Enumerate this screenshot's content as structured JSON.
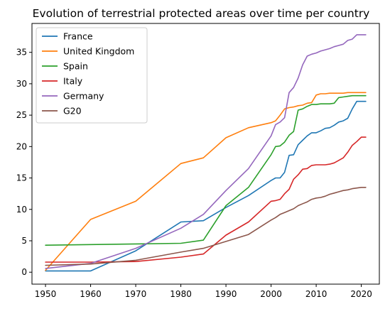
{
  "chart_data": {
    "type": "line",
    "title": "Evolution of terrestrial protected areas over time per country",
    "xlabel": "",
    "ylabel": "",
    "xlim": [
      1947,
      2024
    ],
    "ylim": [
      -1.9,
      39.6
    ],
    "xticks": [
      1950,
      1960,
      1970,
      1980,
      1990,
      2000,
      2010,
      2020
    ],
    "yticks": [
      0,
      5,
      10,
      15,
      20,
      25,
      30,
      35
    ],
    "xtick_labels": [
      "1950",
      "1960",
      "1970",
      "1980",
      "1990",
      "2000",
      "2010",
      "2020"
    ],
    "ytick_labels": [
      "0",
      "5",
      "10",
      "15",
      "20",
      "25",
      "30",
      "35"
    ],
    "grid": false,
    "legend_position": "top-left",
    "series": [
      {
        "name": "France",
        "color": "#1f77b4",
        "x": [
          1950,
          1960,
          1970,
          1980,
          1985,
          1990,
          1995,
          2000,
          2001,
          2002,
          2003,
          2004,
          2005,
          2006,
          2007,
          2008,
          2009,
          2010,
          2011,
          2012,
          2013,
          2014,
          2015,
          2016,
          2017,
          2018,
          2019,
          2020,
          2021
        ],
        "y": [
          0.2,
          0.2,
          3.4,
          8.0,
          8.2,
          10.3,
          12.2,
          14.6,
          15.0,
          15.0,
          15.9,
          18.6,
          18.7,
          20.3,
          21.0,
          21.7,
          22.2,
          22.2,
          22.5,
          22.9,
          23.0,
          23.4,
          23.9,
          24.1,
          24.5,
          26.0,
          27.2,
          27.2,
          27.2
        ]
      },
      {
        "name": "United Kingdom",
        "color": "#ff7f0e",
        "x": [
          1950,
          1960,
          1970,
          1980,
          1985,
          1990,
          1995,
          2000,
          2001,
          2002,
          2003,
          2004,
          2005,
          2006,
          2007,
          2008,
          2009,
          2010,
          2011,
          2012,
          2013,
          2014,
          2015,
          2016,
          2017,
          2018,
          2019,
          2020,
          2021
        ],
        "y": [
          0.3,
          8.4,
          11.3,
          17.3,
          18.2,
          21.4,
          23.0,
          23.8,
          24.1,
          25.0,
          26.0,
          26.2,
          26.3,
          26.5,
          26.6,
          26.9,
          27.0,
          28.2,
          28.4,
          28.4,
          28.5,
          28.5,
          28.5,
          28.5,
          28.6,
          28.6,
          28.6,
          28.6,
          28.6
        ]
      },
      {
        "name": "Spain",
        "color": "#2ca02c",
        "x": [
          1950,
          1960,
          1970,
          1980,
          1985,
          1990,
          1995,
          2000,
          2001,
          2002,
          2003,
          2004,
          2005,
          2006,
          2007,
          2008,
          2009,
          2010,
          2011,
          2012,
          2013,
          2014,
          2015,
          2016,
          2017,
          2018,
          2019,
          2020,
          2021
        ],
        "y": [
          4.3,
          4.4,
          4.5,
          4.6,
          5.1,
          10.6,
          13.5,
          18.7,
          20.0,
          20.1,
          20.7,
          21.8,
          22.4,
          25.8,
          26.0,
          26.4,
          26.7,
          26.7,
          26.8,
          26.8,
          26.8,
          26.9,
          27.8,
          27.9,
          28.0,
          28.1,
          28.1,
          28.1,
          28.1
        ]
      },
      {
        "name": "Italy",
        "color": "#d62728",
        "x": [
          1950,
          1960,
          1970,
          1980,
          1985,
          1990,
          1995,
          2000,
          2001,
          2002,
          2003,
          2004,
          2005,
          2006,
          2007,
          2008,
          2009,
          2010,
          2011,
          2012,
          2013,
          2014,
          2015,
          2016,
          2017,
          2018,
          2019,
          2020,
          2021
        ],
        "y": [
          1.6,
          1.6,
          1.7,
          2.4,
          2.9,
          5.9,
          8.0,
          11.3,
          11.4,
          11.6,
          12.5,
          13.2,
          14.8,
          15.5,
          16.4,
          16.5,
          17.0,
          17.1,
          17.1,
          17.1,
          17.2,
          17.4,
          17.8,
          18.2,
          19.1,
          20.2,
          20.8,
          21.5,
          21.5
        ]
      },
      {
        "name": "Germany",
        "color": "#9467bd",
        "x": [
          1950,
          1960,
          1970,
          1980,
          1985,
          1990,
          1995,
          2000,
          2001,
          2002,
          2003,
          2004,
          2005,
          2006,
          2007,
          2008,
          2009,
          2010,
          2011,
          2012,
          2013,
          2014,
          2015,
          2016,
          2017,
          2018,
          2019,
          2020,
          2021
        ],
        "y": [
          0.6,
          1.4,
          3.8,
          7.0,
          9.2,
          13.0,
          16.5,
          21.7,
          23.5,
          23.9,
          24.6,
          28.6,
          29.4,
          30.9,
          33.0,
          34.4,
          34.7,
          34.9,
          35.2,
          35.4,
          35.6,
          35.9,
          36.1,
          36.3,
          36.9,
          37.1,
          37.8,
          37.8,
          37.8
        ]
      },
      {
        "name": "G20",
        "color": "#8c564b",
        "x": [
          1950,
          1960,
          1970,
          1980,
          1985,
          1990,
          1995,
          2000,
          2001,
          2002,
          2003,
          2004,
          2005,
          2006,
          2007,
          2008,
          2009,
          2010,
          2011,
          2012,
          2013,
          2014,
          2015,
          2016,
          2017,
          2018,
          2019,
          2020,
          2021
        ],
        "y": [
          1.1,
          1.3,
          1.9,
          3.2,
          3.8,
          4.9,
          6.0,
          8.3,
          8.7,
          9.2,
          9.5,
          9.8,
          10.1,
          10.6,
          10.9,
          11.2,
          11.6,
          11.8,
          11.9,
          12.1,
          12.4,
          12.6,
          12.8,
          13.0,
          13.1,
          13.3,
          13.4,
          13.5,
          13.5
        ]
      }
    ]
  }
}
